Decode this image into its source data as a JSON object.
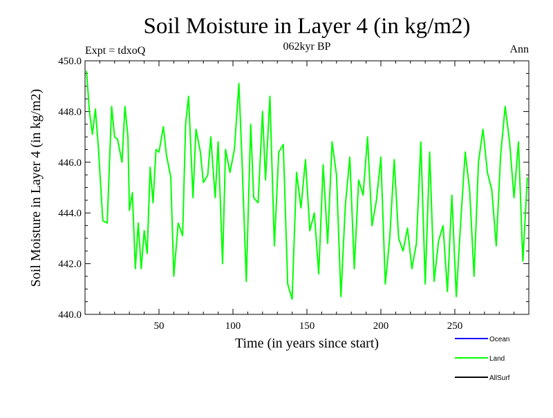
{
  "chart_data": {
    "type": "line",
    "title": "Soil Moisture in Layer 4 (in kg/m2)",
    "subtitle": "062kyr BP",
    "left_note": "Expt = tdxoQ",
    "right_note": "Ann",
    "xlabel": "Time (in years since start)",
    "ylabel": "Soil Moisture in Layer 4 (in kg/m2)",
    "xlim": [
      0,
      300
    ],
    "ylim": [
      440.0,
      450.0
    ],
    "x_ticks": [
      50,
      100,
      150,
      200,
      250
    ],
    "x_tick_labels": [
      "50",
      "100",
      "150",
      "200",
      "250"
    ],
    "y_ticks": [
      440,
      442,
      444,
      446,
      448,
      450
    ],
    "y_tick_labels": [
      "440.0",
      "442.0",
      "444.0",
      "446.0",
      "448.0",
      "450.0"
    ],
    "grid": false,
    "legend_position": "bottom-right",
    "legend": [
      {
        "label": "Ocean",
        "color": "#0000ff"
      },
      {
        "label": "Land",
        "color": "#00ff00"
      },
      {
        "label": "AllSurf",
        "color": "#000000"
      }
    ],
    "series": [
      {
        "name": "Land",
        "color": "#00ff00",
        "x": [
          1,
          3,
          5,
          7,
          9,
          12,
          15,
          18,
          20,
          22,
          25,
          27,
          29,
          30,
          32,
          34,
          36,
          38,
          40,
          42,
          44,
          46,
          48,
          50,
          53,
          55,
          58,
          60,
          63,
          66,
          68,
          70,
          73,
          75,
          78,
          80,
          83,
          85,
          88,
          90,
          93,
          95,
          98,
          101,
          104,
          106,
          109,
          112,
          114,
          117,
          120,
          122,
          125,
          128,
          131,
          134,
          137,
          140,
          143,
          146,
          149,
          152,
          155,
          158,
          161,
          164,
          167,
          170,
          173,
          176,
          179,
          182,
          185,
          188,
          191,
          194,
          197,
          200,
          203,
          206,
          209,
          212,
          215,
          218,
          221,
          224,
          227,
          230,
          233,
          236,
          239,
          242,
          245,
          248,
          251,
          254,
          257,
          260,
          263,
          266,
          269,
          272,
          275,
          278,
          281,
          284,
          287,
          290,
          293,
          296,
          299
        ],
        "y": [
          449.6,
          448.0,
          447.1,
          448.1,
          446.6,
          443.7,
          443.6,
          448.2,
          447.0,
          446.9,
          446.0,
          448.2,
          447.0,
          444.1,
          444.8,
          441.8,
          443.6,
          441.8,
          443.3,
          442.4,
          445.8,
          444.4,
          446.5,
          446.4,
          447.4,
          446.3,
          445.4,
          441.5,
          443.6,
          443.1,
          447.5,
          448.6,
          444.6,
          447.3,
          446.4,
          445.2,
          445.5,
          447.0,
          444.6,
          446.8,
          442.0,
          446.5,
          445.6,
          446.5,
          449.1,
          446.3,
          441.3,
          447.5,
          444.6,
          444.4,
          448.0,
          445.3,
          448.6,
          442.7,
          446.4,
          446.7,
          441.2,
          440.6,
          445.6,
          444.2,
          446.1,
          443.3,
          444.0,
          441.6,
          445.9,
          442.8,
          446.8,
          445.5,
          440.7,
          444.3,
          446.2,
          441.8,
          445.3,
          444.7,
          447.0,
          443.5,
          444.5,
          446.2,
          441.2,
          443.0,
          446.1,
          443.0,
          442.5,
          443.4,
          441.8,
          442.8,
          446.8,
          441.2,
          446.4,
          441.3,
          442.9,
          443.5,
          440.9,
          444.7,
          440.7,
          443.7,
          446.4,
          444.9,
          441.5,
          446.0,
          447.3,
          445.6,
          444.9,
          442.7,
          446.3,
          448.2,
          446.8,
          444.6,
          446.8,
          442.1,
          445.4
        ]
      },
      {
        "name": "Ocean",
        "color": "#0000ff",
        "x": [],
        "y": []
      },
      {
        "name": "AllSurf",
        "color": "#000000",
        "x": [],
        "y": []
      }
    ]
  }
}
